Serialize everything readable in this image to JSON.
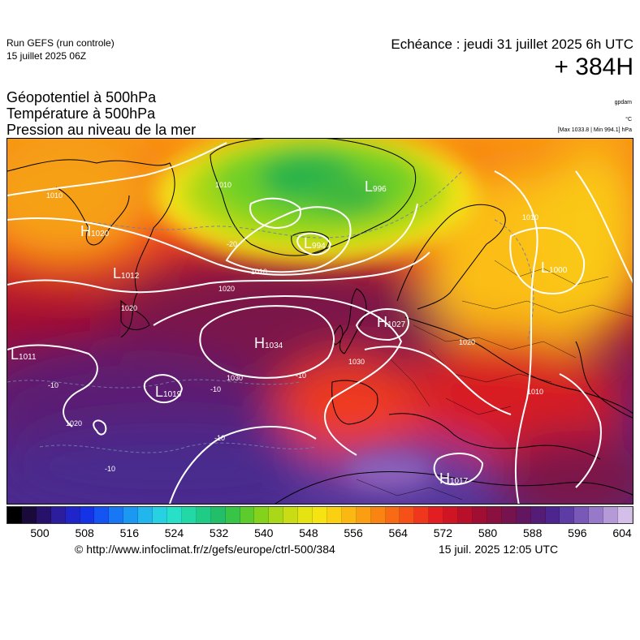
{
  "header": {
    "run_title": "Run GEFS (run controle)",
    "run_date": "15 juillet 2025 06Z",
    "valid_time": "Echéance : jeudi 31 juillet 2025 6h UTC",
    "lead_time": "+ 384H"
  },
  "parameters": [
    "Géopotentiel à 500hPa",
    "Température à 500hPa",
    "Pression au niveau de la mer"
  ],
  "units": {
    "geopotential": "gpdam",
    "temperature": "°C",
    "pressure_minmax": "[Max 1033.8 | Min 994.1] hPa"
  },
  "map": {
    "pressure_centers": [
      {
        "type": "H",
        "value": "1020",
        "region": "labrador"
      },
      {
        "type": "L",
        "value": "1012",
        "region": "newfoundland"
      },
      {
        "type": "L",
        "value": "1011",
        "region": "west-atlantic"
      },
      {
        "type": "L",
        "value": "996",
        "region": "east-greenland"
      },
      {
        "type": "L",
        "value": "994",
        "region": "iceland"
      },
      {
        "type": "L",
        "value": "1000",
        "region": "western-russia"
      },
      {
        "type": "H",
        "value": "1034",
        "region": "central-atlantic"
      },
      {
        "type": "L",
        "value": "1019",
        "region": "azores-southwest"
      },
      {
        "type": "H",
        "value": "1027",
        "region": "north-sea"
      },
      {
        "type": "H",
        "value": "1017",
        "region": "libya"
      }
    ],
    "isobar_labels": [
      "1010",
      "1010",
      "1010",
      "1010",
      "1020",
      "1020",
      "1020",
      "1030",
      "1030",
      "1020",
      "1010"
    ],
    "isotherm_labels": [
      "-20",
      "-10",
      "-10",
      "-10",
      "-10",
      "-10"
    ]
  },
  "colorbar": {
    "colors": [
      "#000000",
      "#1a0a3a",
      "#27116b",
      "#2c1d9c",
      "#1f25c8",
      "#1432e6",
      "#1454f2",
      "#1777f5",
      "#1b99f2",
      "#21b7ec",
      "#27d1e2",
      "#26e0c8",
      "#22d8a4",
      "#1ecc86",
      "#22bf68",
      "#38c446",
      "#5ecb2c",
      "#85d21c",
      "#aad818",
      "#cadd14",
      "#e5e412",
      "#f6e412",
      "#fbd012",
      "#fcb812",
      "#fc9e12",
      "#fa8412",
      "#f86a14",
      "#f55018",
      "#f0361c",
      "#e31e22",
      "#cf1424",
      "#b80f2a",
      "#a00e34",
      "#8a1040",
      "#76124d",
      "#631660",
      "#541c76",
      "#4c258e",
      "#5e3ca6",
      "#7a58b8",
      "#9878c8",
      "#b69ad8",
      "#d4bfe8"
    ],
    "tick_values": [
      "500",
      "508",
      "516",
      "524",
      "532",
      "540",
      "548",
      "556",
      "564",
      "572",
      "580",
      "588",
      "596",
      "604"
    ]
  },
  "footer": {
    "credit": "© http://www.infoclimat.fr/z/gefs/europe/ctrl-500/384",
    "generated": "15 juil. 2025 12:05 UTC"
  }
}
